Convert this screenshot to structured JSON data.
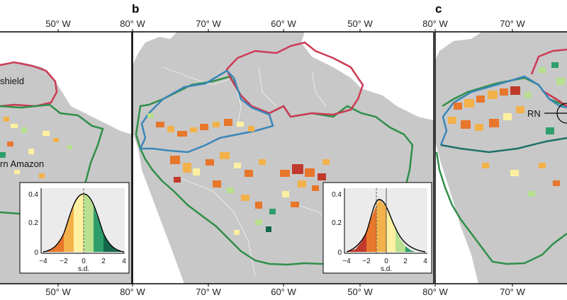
{
  "figure": {
    "panels": [
      {
        "letter": "",
        "top_ticks": [
          "50° W",
          "80° W"
        ],
        "bottom_ticks": [
          "50° W",
          "80° W"
        ],
        "region_labels": [
          "shield",
          "rn Amazon"
        ],
        "inset": {
          "y_ticks": [
            "0.4",
            "0.2",
            "0"
          ],
          "x_ticks": [
            "−4",
            "−2",
            "0",
            "2",
            "4"
          ],
          "x_label": "s.d."
        }
      },
      {
        "letter": "b",
        "top_ticks": [
          "70° W",
          "60° W",
          "50° W",
          "80° W"
        ],
        "bottom_ticks": [
          "70° W",
          "60° W",
          "50° W",
          "80° W"
        ],
        "inset": {
          "y_ticks": [
            "0.4",
            "0.2",
            "0"
          ],
          "x_ticks": [
            "−4",
            "−2",
            "0",
            "2",
            "4"
          ],
          "x_label": "s.d."
        }
      },
      {
        "letter": "c",
        "top_ticks": [
          "70° W"
        ],
        "bottom_ticks": [
          "70° W"
        ],
        "region_labels": [
          "RN"
        ]
      }
    ],
    "colors": {
      "land": "#c8c8c8",
      "border": "#ffffff",
      "guiana_shield": "#cc3b55",
      "northwest_amazon": "#3a86b8",
      "basin_outline": "#2f8f49",
      "scale": [
        "#c0392b",
        "#e8762b",
        "#f3b14a",
        "#fdf0a0",
        "#b8e08f",
        "#2e9e6a",
        "#14684a"
      ]
    }
  }
}
